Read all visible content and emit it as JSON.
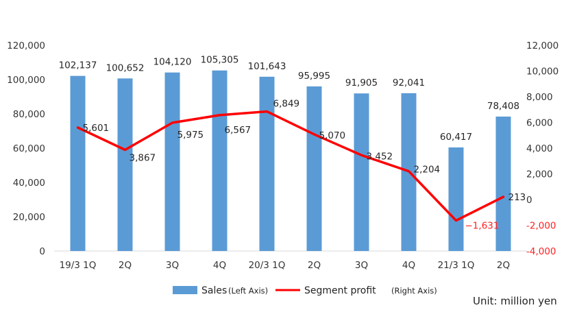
{
  "chart_data": {
    "type": "bar+line",
    "categories": [
      "19/3 1Q",
      "2Q",
      "3Q",
      "4Q",
      "20/3 1Q",
      "2Q",
      "3Q",
      "4Q",
      "21/3 1Q",
      "2Q"
    ],
    "series": [
      {
        "name": "Sales",
        "axis_note": "(Left Axis)",
        "type": "bar",
        "axis": "left",
        "color": "#5b9bd5",
        "values": [
          102137,
          100652,
          104120,
          105305,
          101643,
          95995,
          91905,
          92041,
          60417,
          78408
        ],
        "labels": [
          "102,137",
          "100,652",
          "104,120",
          "105,305",
          "101,643",
          "95,995",
          "91,905",
          "92,041",
          "60,417",
          "78,408"
        ]
      },
      {
        "name": "Segment profit",
        "axis_note": "(Right Axis)",
        "type": "line",
        "axis": "right",
        "color": "#ff0000",
        "values": [
          5601,
          3867,
          5975,
          6567,
          6849,
          5070,
          3452,
          2204,
          -1631,
          213
        ],
        "labels": [
          "5,601",
          "3,867",
          "5,975",
          "6,567",
          "6,849",
          "5,070",
          "3,452",
          "2,204",
          "−1,631",
          "213"
        ]
      }
    ],
    "left_axis": {
      "ylim": [
        0,
        120000
      ],
      "ticks": [
        0,
        20000,
        40000,
        60000,
        80000,
        100000,
        120000
      ],
      "tick_labels": [
        "0",
        "20,000",
        "40,000",
        "60,000",
        "80,000",
        "100,000",
        "120,000"
      ]
    },
    "right_axis": {
      "ylim": [
        -4000,
        12000
      ],
      "ticks": [
        -4000,
        -2000,
        0,
        2000,
        4000,
        6000,
        8000,
        10000,
        12000
      ],
      "tick_labels": [
        "-4,000",
        "-2,000",
        "0",
        "2,000",
        "4,000",
        "6,000",
        "8,000",
        "10,000",
        "12,000"
      ]
    },
    "grid": false,
    "legend_position": "bottom",
    "unit_note": "Unit: million yen"
  }
}
